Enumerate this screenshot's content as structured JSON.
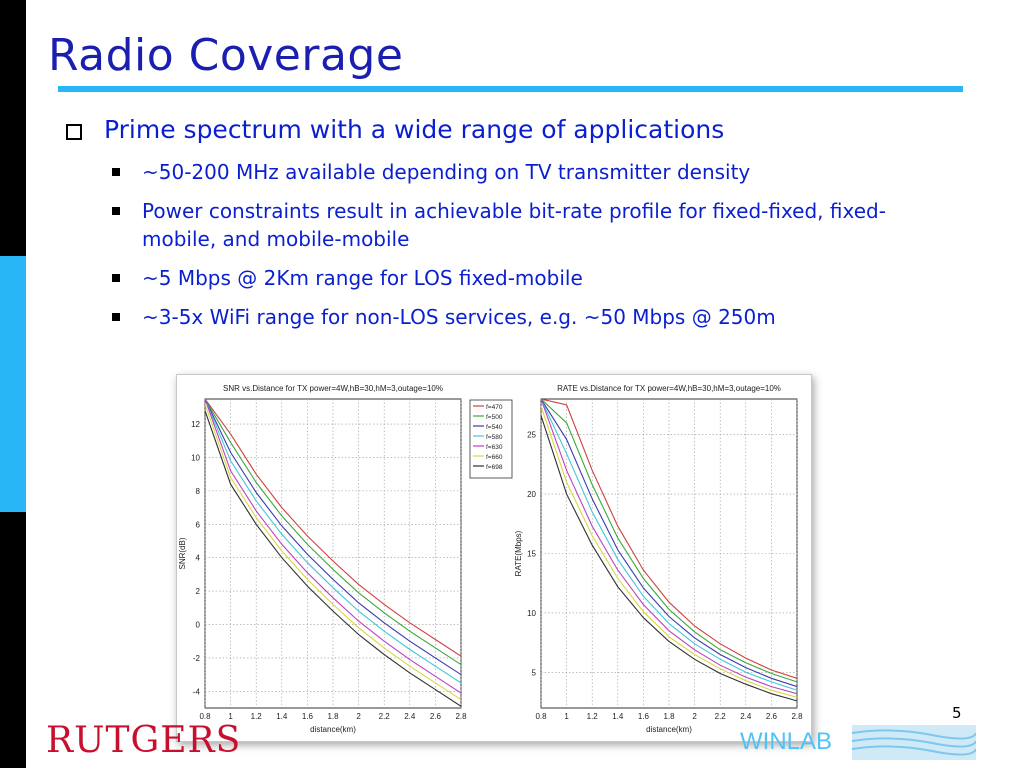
{
  "slide": {
    "title": "Radio Coverage",
    "page_number": "5",
    "bullets": [
      {
        "text": "Prime spectrum with a wide range of applications"
      },
      {
        "text": "~50-200 MHz available depending on TV transmitter density"
      },
      {
        "text": "Power constraints result in achievable bit-rate profile for fixed-fixed, fixed-mobile, and mobile-mobile"
      },
      {
        "text": "~5 Mbps @ 2Km range for LOS fixed-mobile"
      },
      {
        "text": "~3-5x WiFi range for non-LOS services, e.g. ~50 Mbps @ 250m"
      }
    ],
    "footer": {
      "left_logo": "RUTGERS",
      "right_logo": "WINLAB"
    },
    "colors": {
      "title": "#1a1fb0",
      "text": "#0a1fd0",
      "accent": "#29b6f6",
      "logo_red": "#c8102e"
    }
  },
  "chart_data": [
    {
      "type": "line",
      "title": "SNR vs.Distance for TX power=4W,hB=30,hM=3,outage=10%",
      "xlabel": "distance(km)",
      "ylabel": "SNR(dB)",
      "xlim": [
        0.8,
        2.8
      ],
      "ylim": [
        -5,
        13.5
      ],
      "xticks": [
        "0.8",
        "1",
        "1.2",
        "1.4",
        "1.6",
        "1.8",
        "2",
        "2.2",
        "2.4",
        "2.6",
        "2.8"
      ],
      "yticks": [
        "12",
        "10",
        "8",
        "6",
        "4",
        "2",
        "0",
        "-2",
        "-4"
      ],
      "grid": true,
      "legend": "top-right",
      "x": [
        0.8,
        1.0,
        1.2,
        1.4,
        1.6,
        1.8,
        2.0,
        2.2,
        2.4,
        2.6,
        2.8
      ],
      "series": [
        {
          "name": "f=470",
          "color": "#d04040",
          "values": [
            13.5,
            11.4,
            9.0,
            7.0,
            5.3,
            3.8,
            2.4,
            1.2,
            0.1,
            -0.9,
            -1.9
          ]
        },
        {
          "name": "f=500",
          "color": "#3aa83a",
          "values": [
            13.5,
            10.9,
            8.5,
            6.5,
            4.8,
            3.3,
            1.9,
            0.7,
            -0.4,
            -1.4,
            -2.4
          ]
        },
        {
          "name": "f=540",
          "color": "#3a3ab0",
          "values": [
            13.5,
            10.3,
            7.9,
            5.9,
            4.2,
            2.7,
            1.3,
            0.1,
            -1.0,
            -2.0,
            -3.0
          ]
        },
        {
          "name": "f=580",
          "color": "#40c8d8",
          "values": [
            13.5,
            9.8,
            7.4,
            5.4,
            3.7,
            2.2,
            0.8,
            -0.4,
            -1.5,
            -2.5,
            -3.5
          ]
        },
        {
          "name": "f=630",
          "color": "#c040c0",
          "values": [
            13.5,
            9.2,
            6.8,
            4.8,
            3.1,
            1.6,
            0.2,
            -1.0,
            -2.1,
            -3.1,
            -4.1
          ]
        },
        {
          "name": "f=660",
          "color": "#d8d840",
          "values": [
            13.2,
            8.8,
            6.4,
            4.4,
            2.7,
            1.2,
            -0.2,
            -1.4,
            -2.5,
            -3.5,
            -4.5
          ]
        },
        {
          "name": "f=698",
          "color": "#303030",
          "values": [
            12.8,
            8.4,
            6.0,
            4.0,
            2.3,
            0.8,
            -0.6,
            -1.8,
            -2.9,
            -3.9,
            -4.9
          ]
        }
      ]
    },
    {
      "type": "line",
      "title": "RATE vs.Distance for TX power=4W,hB=30,hM=3,outage=10%",
      "xlabel": "distance(km)",
      "ylabel": "RATE(Mbps)",
      "xlim": [
        0.8,
        2.8
      ],
      "ylim": [
        2,
        28
      ],
      "xticks": [
        "0.8",
        "1",
        "1.2",
        "1.4",
        "1.6",
        "1.8",
        "2",
        "2.2",
        "2.4",
        "2.6",
        "2.8"
      ],
      "yticks": [
        "25",
        "20",
        "15",
        "10",
        "5"
      ],
      "grid": true,
      "x": [
        0.8,
        1.0,
        1.2,
        1.4,
        1.6,
        1.8,
        2.0,
        2.2,
        2.4,
        2.6,
        2.8
      ],
      "series": [
        {
          "name": "f=470",
          "color": "#d04040",
          "values": [
            28.0,
            27.5,
            22.0,
            17.3,
            13.6,
            10.9,
            8.9,
            7.4,
            6.2,
            5.2,
            4.5
          ]
        },
        {
          "name": "f=500",
          "color": "#3aa83a",
          "values": [
            28.0,
            26.0,
            20.8,
            16.3,
            12.9,
            10.3,
            8.4,
            6.9,
            5.8,
            4.9,
            4.2
          ]
        },
        {
          "name": "f=540",
          "color": "#3a3ab0",
          "values": [
            28.0,
            24.6,
            19.6,
            15.3,
            12.1,
            9.7,
            7.9,
            6.5,
            5.4,
            4.5,
            3.8
          ]
        },
        {
          "name": "f=580",
          "color": "#40c8d8",
          "values": [
            28.0,
            23.4,
            18.5,
            14.5,
            11.4,
            9.1,
            7.4,
            6.1,
            5.0,
            4.2,
            3.5
          ]
        },
        {
          "name": "f=630",
          "color": "#c040c0",
          "values": [
            28.0,
            22.0,
            17.3,
            13.6,
            10.7,
            8.5,
            6.9,
            5.6,
            4.6,
            3.8,
            3.2
          ]
        },
        {
          "name": "f=660",
          "color": "#d8d840",
          "values": [
            27.4,
            21.0,
            16.5,
            12.9,
            10.1,
            8.0,
            6.5,
            5.3,
            4.3,
            3.5,
            2.9
          ]
        },
        {
          "name": "f=698",
          "color": "#303030",
          "values": [
            26.6,
            20.0,
            15.7,
            12.2,
            9.6,
            7.6,
            6.1,
            4.9,
            4.0,
            3.2,
            2.6
          ]
        }
      ]
    }
  ]
}
